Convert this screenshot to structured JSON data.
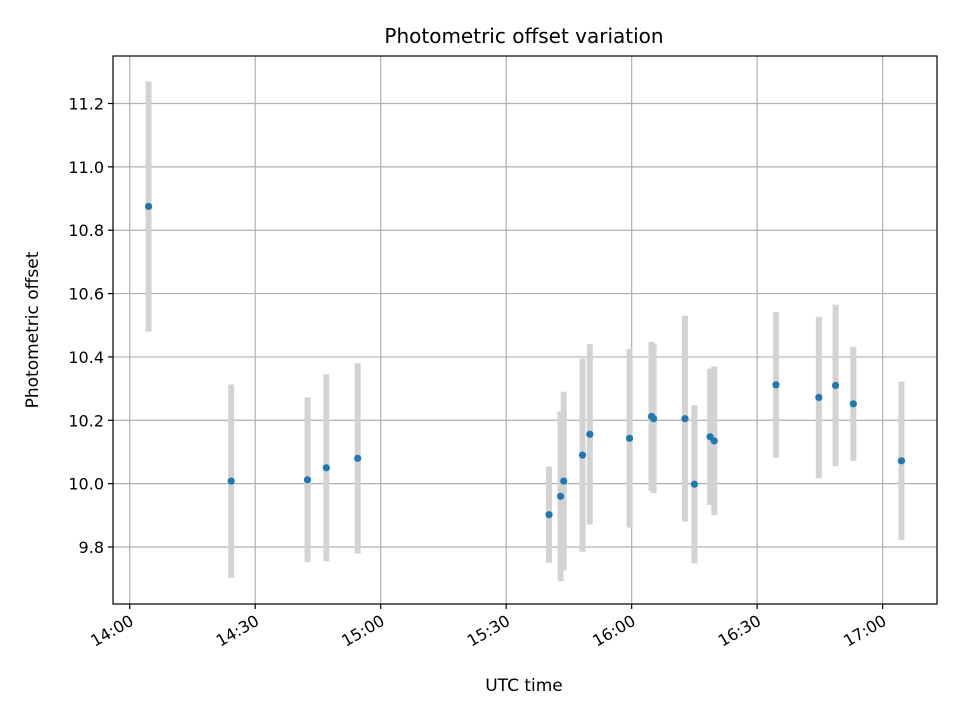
{
  "chart_data": {
    "type": "scatter",
    "title": "Photometric offset variation",
    "xlabel": "UTC time",
    "ylabel": "Photometric offset",
    "x_ticks": [
      "14:00",
      "14:30",
      "15:00",
      "15:30",
      "16:00",
      "16:30",
      "17:00"
    ],
    "y_ticks": [
      "9.8",
      "10.0",
      "10.2",
      "10.4",
      "10.6",
      "10.8",
      "11.0",
      "11.2"
    ],
    "xlim": [
      "13:56",
      "17:13"
    ],
    "ylim": [
      9.62,
      11.35
    ],
    "grid": true,
    "marker_color": "#1f77b4",
    "errorbar_color": "#d3d3d3",
    "series": [
      {
        "points": [
          {
            "x": "14:04:30",
            "y": 10.875,
            "err": 0.395
          },
          {
            "x": "14:24:15",
            "y": 10.008,
            "err": 0.305
          },
          {
            "x": "14:42:30",
            "y": 10.012,
            "err": 0.26
          },
          {
            "x": "14:47:00",
            "y": 10.05,
            "err": 0.295
          },
          {
            "x": "14:54:30",
            "y": 10.08,
            "err": 0.3
          },
          {
            "x": "15:40:15",
            "y": 9.902,
            "err": 0.152
          },
          {
            "x": "15:43:00",
            "y": 9.96,
            "err": 0.268
          },
          {
            "x": "15:43:45",
            "y": 10.008,
            "err": 0.282
          },
          {
            "x": "15:48:15",
            "y": 10.09,
            "err": 0.305
          },
          {
            "x": "15:50:00",
            "y": 10.156,
            "err": 0.285
          },
          {
            "x": "15:59:30",
            "y": 10.143,
            "err": 0.282
          },
          {
            "x": "16:04:45",
            "y": 10.212,
            "err": 0.235
          },
          {
            "x": "16:05:15",
            "y": 10.205,
            "err": 0.235
          },
          {
            "x": "16:12:45",
            "y": 10.205,
            "err": 0.325
          },
          {
            "x": "16:15:00",
            "y": 9.998,
            "err": 0.25
          },
          {
            "x": "16:18:45",
            "y": 10.148,
            "err": 0.215
          },
          {
            "x": "16:19:45",
            "y": 10.135,
            "err": 0.235
          },
          {
            "x": "16:34:30",
            "y": 10.312,
            "err": 0.23
          },
          {
            "x": "16:44:45",
            "y": 10.272,
            "err": 0.255
          },
          {
            "x": "16:48:45",
            "y": 10.31,
            "err": 0.255
          },
          {
            "x": "16:53:00",
            "y": 10.252,
            "err": 0.18
          },
          {
            "x": "17:04:30",
            "y": 10.072,
            "err": 0.25
          }
        ]
      }
    ]
  }
}
